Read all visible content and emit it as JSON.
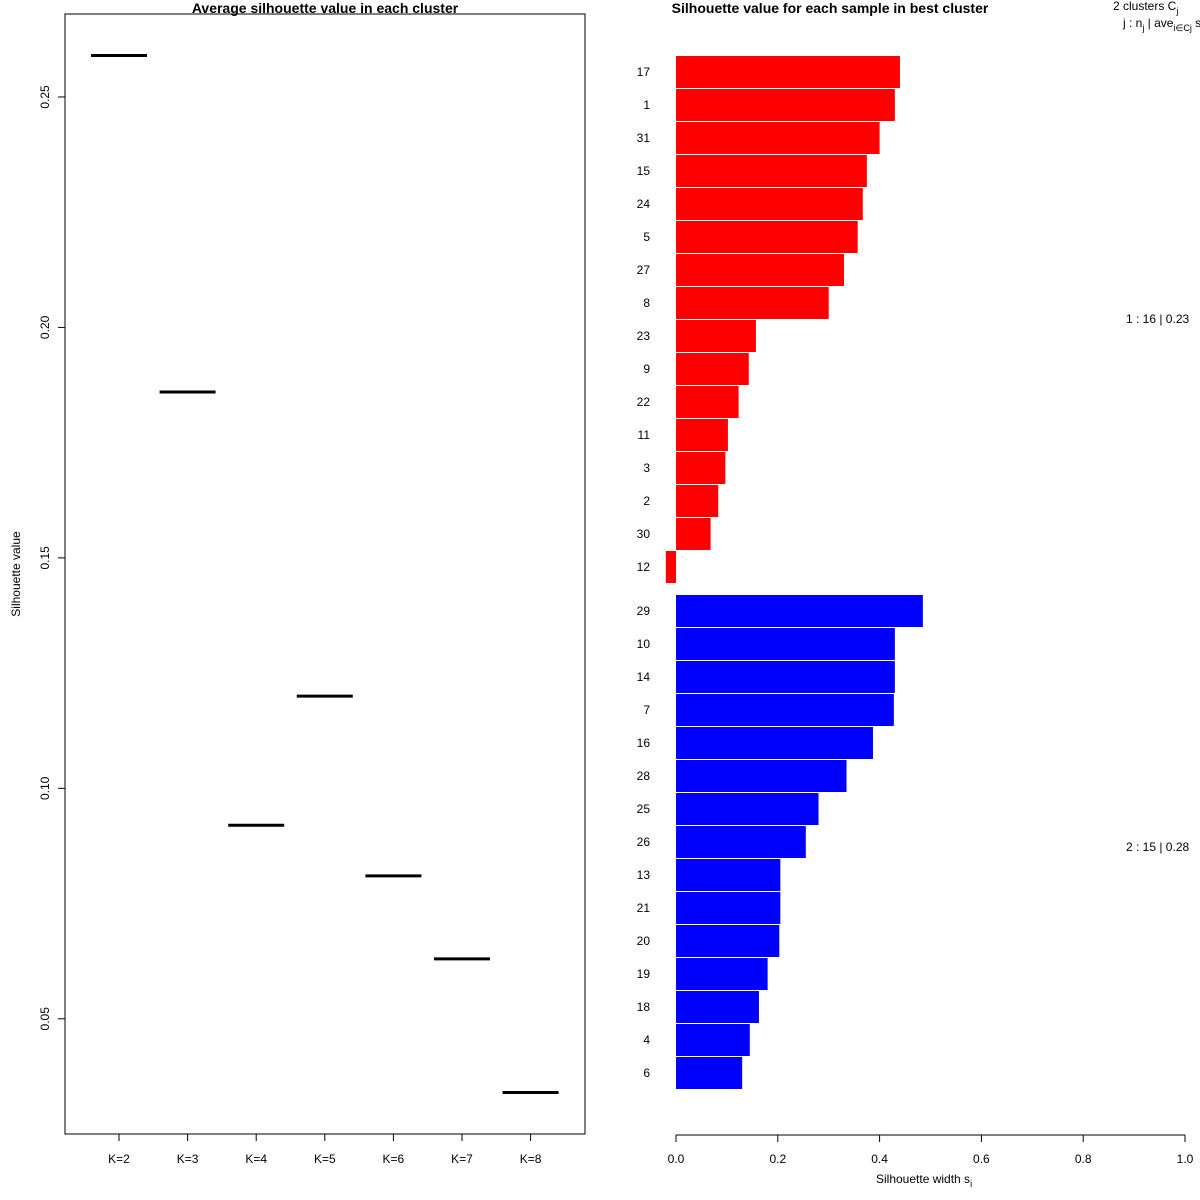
{
  "chart_data": [
    {
      "type": "line",
      "title": "Average silhouette value in each cluster",
      "xlabel": "",
      "ylabel": "Silhouette value",
      "categories": [
        "K=2",
        "K=3",
        "K=4",
        "K=5",
        "K=6",
        "K=7",
        "K=8"
      ],
      "values": [
        0.259,
        0.186,
        0.092,
        0.12,
        0.081,
        0.063,
        0.034
      ],
      "ylim": [
        0.025,
        0.268
      ],
      "yticks": [
        "0.05",
        "0.10",
        "0.15",
        "0.20",
        "0.25"
      ]
    },
    {
      "type": "bar",
      "title": "Silhouette value for each sample in best cluster",
      "xlabel": "Silhouette width s",
      "xlabel_sub": "i",
      "xlim": [
        0,
        1
      ],
      "xticks": [
        "0.0",
        "0.2",
        "0.4",
        "0.6",
        "0.8",
        "1.0"
      ],
      "legend_header": {
        "line1": "2 clusters C",
        "line1_sub": "j",
        "line2_a": "j : n",
        "line2_a_sub": "j",
        "line2_b": " | ave",
        "line2_b_sub": "i∈Cj",
        "line2_c": " s",
        "line2_c_sub": "i"
      },
      "clusters": [
        {
          "name": "1",
          "color": "#ff0000",
          "summary": "1 :  16  |  0.23",
          "samples": [
            "17",
            "1",
            "31",
            "15",
            "24",
            "5",
            "27",
            "8",
            "23",
            "9",
            "22",
            "11",
            "3",
            "2",
            "30",
            "12"
          ],
          "values": [
            0.44,
            0.43,
            0.4,
            0.375,
            0.367,
            0.357,
            0.33,
            0.3,
            0.157,
            0.143,
            0.123,
            0.102,
            0.097,
            0.083,
            0.068,
            -0.02
          ]
        },
        {
          "name": "2",
          "color": "#0000ff",
          "summary": "2 :  15  |  0.28",
          "samples": [
            "29",
            "10",
            "14",
            "7",
            "16",
            "28",
            "25",
            "26",
            "13",
            "21",
            "20",
            "19",
            "18",
            "4",
            "6"
          ],
          "values": [
            0.485,
            0.43,
            0.43,
            0.428,
            0.387,
            0.335,
            0.28,
            0.255,
            0.205,
            0.205,
            0.203,
            0.18,
            0.163,
            0.145,
            0.13
          ]
        }
      ]
    }
  ]
}
